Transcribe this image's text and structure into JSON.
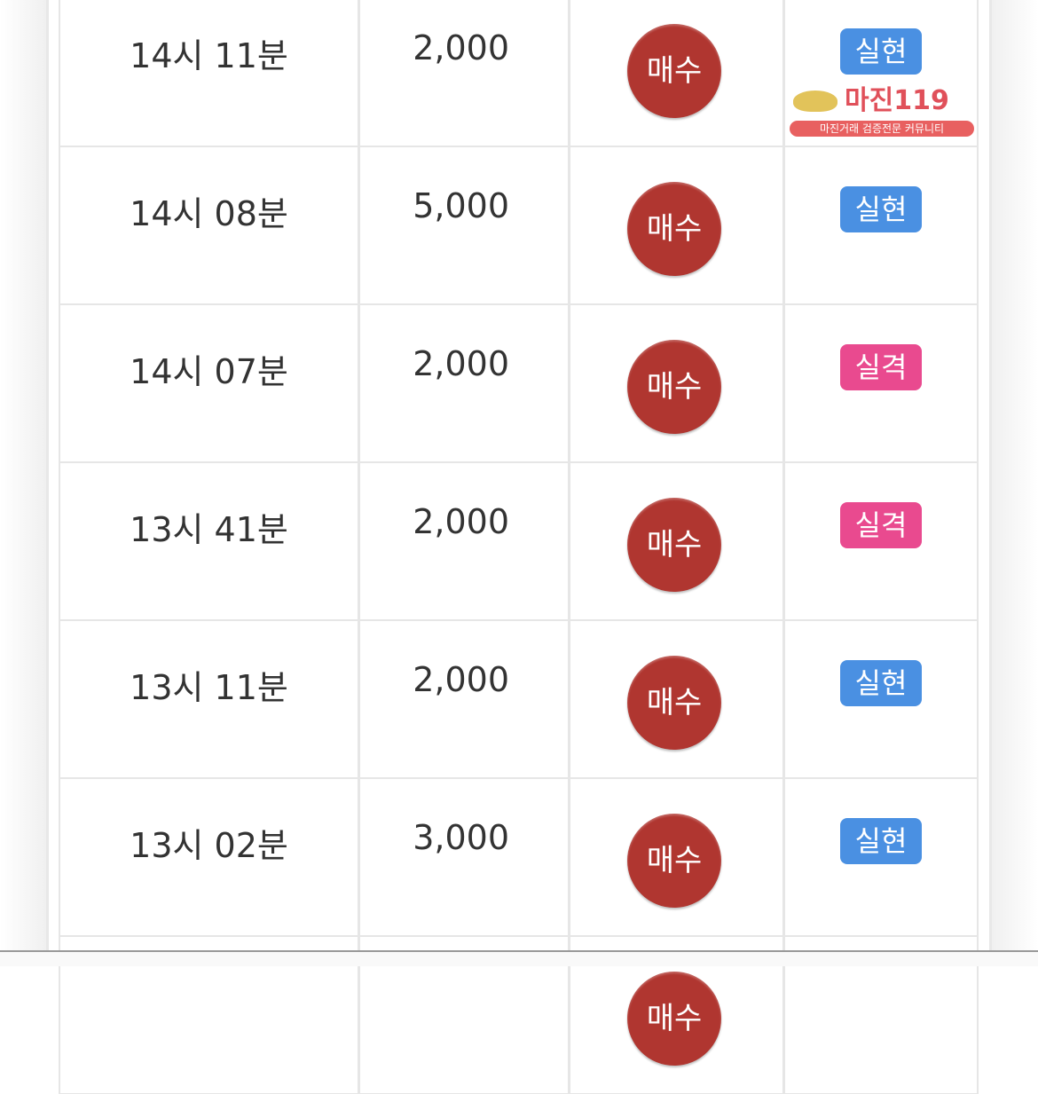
{
  "rows": [
    {
      "time": "14시 11분",
      "amount": "2,000",
      "action": "매수",
      "result": "실현",
      "result_color": "#4a90e2"
    },
    {
      "time": "14시 08분",
      "amount": "5,000",
      "action": "매수",
      "result": "실현",
      "result_color": "#4a90e2"
    },
    {
      "time": "14시 07분",
      "amount": "2,000",
      "action": "매수",
      "result": "실격",
      "result_color": "#e94a8f"
    },
    {
      "time": "13시 41분",
      "amount": "2,000",
      "action": "매수",
      "result": "실격",
      "result_color": "#e94a8f"
    },
    {
      "time": "13시 11분",
      "amount": "2,000",
      "action": "매수",
      "result": "실현",
      "result_color": "#4a90e2"
    },
    {
      "time": "13시 02분",
      "amount": "3,000",
      "action": "매수",
      "result": "실현",
      "result_color": "#4a90e2"
    },
    {
      "time": "",
      "amount": "",
      "action": "매수",
      "result": "",
      "result_color": "#4a90e2"
    }
  ],
  "watermark": {
    "title": "마진119",
    "subtitle": "마진거래 검증전문 커뮤니티"
  },
  "colors": {
    "buy": "#b03630",
    "realized": "#4a90e2",
    "disqualified": "#e94a8f"
  }
}
